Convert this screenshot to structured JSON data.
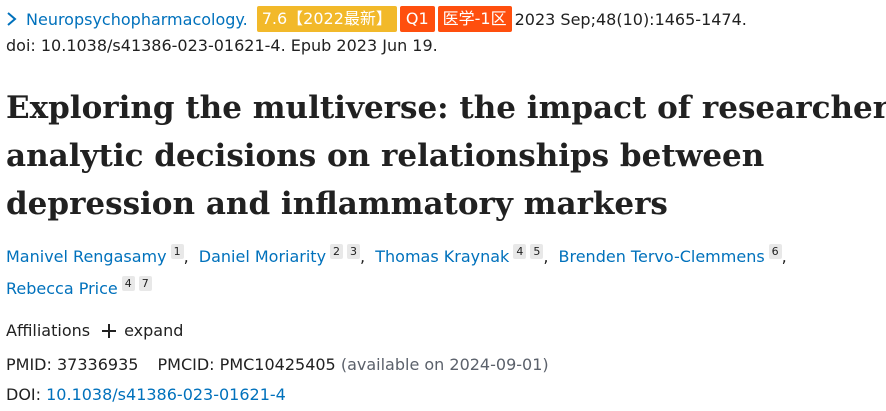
{
  "citation": {
    "journal": "Neuropsychopharmacology.",
    "impact_badge": "7.6【2022最新】",
    "quartile_badge": "Q1",
    "cas_badge": "医学-1区",
    "date_volume": "2023 Sep;48(10):1465-1474.",
    "doi_epub": "doi: 10.1038/s41386-023-01621-4. Epub 2023 Jun 19.",
    "colors": {
      "link": "#0071bc",
      "impact_badge": "#f2b92a",
      "rank_badge": "#ff4f0e"
    }
  },
  "title_lines": [
    "Exploring the multiverse: the impact of researchers'",
    "analytic decisions on relationships between",
    "depression and inflammatory markers"
  ],
  "authors": [
    {
      "name": "Manivel Rengasamy",
      "affils": [
        "1"
      ]
    },
    {
      "name": "Daniel Moriarity",
      "affils": [
        "2",
        "3"
      ]
    },
    {
      "name": "Thomas Kraynak",
      "affils": [
        "4",
        "5"
      ]
    },
    {
      "name": "Brenden Tervo-Clemmens",
      "affils": [
        "6"
      ]
    },
    {
      "name": "Rebecca Price",
      "affils": [
        "4",
        "7"
      ]
    }
  ],
  "author_separator": ",",
  "affiliations": {
    "label": "Affiliations",
    "expand_label": "expand"
  },
  "ids": {
    "pmid_label": "PMID:",
    "pmid": "37336935",
    "pmcid_label": "PMCID:",
    "pmcid": "PMC10425405",
    "availability": "(available on 2024-09-01)",
    "doi_label": "DOI:",
    "doi": "10.1038/s41386-023-01621-4"
  },
  "icons": {
    "journal_toggle": "chevron-right-icon",
    "expand": "plus-icon"
  }
}
